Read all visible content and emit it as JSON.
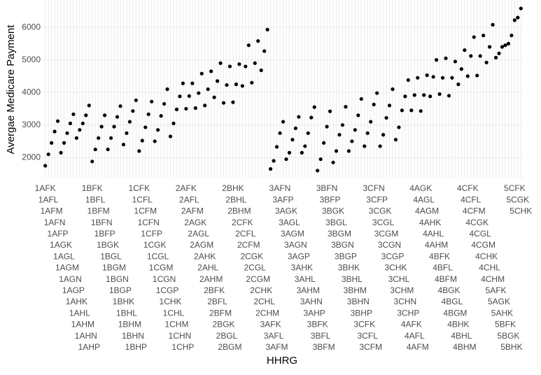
{
  "chart_data": {
    "type": "scatter",
    "x_label": "HHRG",
    "y_label": "Avergae Medicare Payment",
    "categories": [
      "1AFK",
      "1AFL",
      "1AFM",
      "1AFN",
      "1AFP",
      "1AGK",
      "1AGL",
      "1AGM",
      "1AGN",
      "1AGP",
      "1AHK",
      "1AHL",
      "1AHM",
      "1AHN",
      "1AHP",
      "1BFK",
      "1BFL",
      "1BFM",
      "1BFN",
      "1BFP",
      "1BGK",
      "1BGL",
      "1BGM",
      "1BGN",
      "1BGP",
      "1BHK",
      "1BHL",
      "1BHM",
      "1BHN",
      "1BHP",
      "1CFK",
      "1CFL",
      "1CFM",
      "1CFN",
      "1CFP",
      "1CGK",
      "1CGL",
      "1CGM",
      "1CGN",
      "1CGP",
      "1CHK",
      "1CHL",
      "1CHM",
      "1CHN",
      "1CHP",
      "2AFK",
      "2AFL",
      "2AFM",
      "2AGK",
      "2AGL",
      "2AGM",
      "2AHK",
      "2AHL",
      "2AHM",
      "2BFK",
      "2BFL",
      "2BFM",
      "2BGK",
      "2BGL",
      "2BGM",
      "2BHK",
      "2BHL",
      "2BHM",
      "2CFK",
      "2CFL",
      "2CFM",
      "2CGK",
      "2CGL",
      "2CGM",
      "2CHK",
      "2CHL",
      "2CHM",
      "3AFK",
      "3AFL",
      "3AFM",
      "3AFN",
      "3AFP",
      "3AGK",
      "3AGL",
      "3AGM",
      "3AGN",
      "3AGP",
      "3AHK",
      "3AHL",
      "3AHM",
      "3AHN",
      "3AHP",
      "3BFK",
      "3BFL",
      "3BFM",
      "3BFN",
      "3BFP",
      "3BGK",
      "3BGL",
      "3BGM",
      "3BGN",
      "3BGP",
      "3BHK",
      "3BHL",
      "3BHM",
      "3BHN",
      "3BHP",
      "3CFK",
      "3CFL",
      "3CFM",
      "3CFN",
      "3CFP",
      "3CGK",
      "3CGL",
      "3CGM",
      "3CGN",
      "3CGP",
      "3CHK",
      "3CHL",
      "3CHM",
      "3CHN",
      "3CHP",
      "4AFK",
      "4AFL",
      "4AFM",
      "4AGK",
      "4AGL",
      "4AGM",
      "4AHK",
      "4AHL",
      "4AHM",
      "4BFK",
      "4BFL",
      "4BFM",
      "4BGK",
      "4BGL",
      "4BGM",
      "4BHK",
      "4BHL",
      "4BHM",
      "4CFK",
      "4CFL",
      "4CFM",
      "4CGK",
      "4CGL",
      "4CGM",
      "4CHK",
      "4CHL",
      "4CHM",
      "5AFK",
      "5AGK",
      "5AHK",
      "5BFK",
      "5BGK",
      "5BHK",
      "5CFK",
      "5CGK",
      "5CHK"
    ],
    "values": [
      1750,
      2100,
      2450,
      2800,
      3120,
      2150,
      2450,
      2750,
      3050,
      3330,
      2600,
      2850,
      3050,
      3300,
      3600,
      1880,
      2250,
      2600,
      2950,
      3300,
      2250,
      2600,
      2950,
      3250,
      3580,
      2400,
      2750,
      3100,
      3430,
      3760,
      2200,
      2520,
      2930,
      3330,
      3720,
      2500,
      2850,
      3280,
      3650,
      4100,
      2650,
      3050,
      3480,
      3880,
      4280,
      3500,
      3890,
      4280,
      3520,
      3980,
      4580,
      3600,
      4100,
      4650,
      3850,
      4350,
      4900,
      3680,
      4230,
      4800,
      3700,
      4250,
      4870,
      4200,
      4800,
      5450,
      4300,
      4900,
      5580,
      4680,
      5270,
      5930,
      1650,
      1900,
      2330,
      2750,
      3100,
      1950,
      2150,
      2550,
      2900,
      3250,
      2150,
      2350,
      2750,
      3230,
      3550,
      1600,
      1950,
      2450,
      2950,
      3420,
      1850,
      2200,
      2700,
      3000,
      3560,
      2200,
      2500,
      2850,
      3300,
      3800,
      2350,
      2750,
      3100,
      3630,
      3980,
      2350,
      2700,
      3220,
      3600,
      4100,
      2550,
      2930,
      3450,
      3880,
      4380,
      3450,
      3920,
      4450,
      3430,
      3920,
      4530,
      3880,
      4480,
      5000,
      3950,
      4450,
      5050,
      3900,
      4450,
      4950,
      4250,
      4720,
      5300,
      4500,
      5120,
      5700,
      4520,
      5120,
      5750,
      4920,
      5400,
      6080,
      5070,
      5200,
      5400,
      5450,
      5500,
      5750,
      6220,
      6300,
      6580
    ],
    "color": "#000000",
    "ylim": [
      1360,
      6840
    ],
    "yticks": [
      2000,
      3000,
      4000,
      5000,
      6000
    ],
    "grid": true
  }
}
